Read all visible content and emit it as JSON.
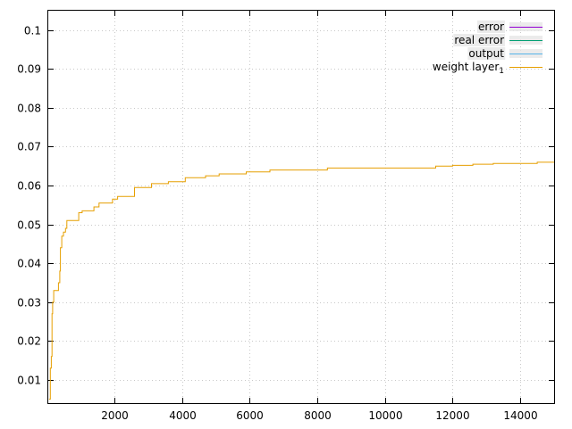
{
  "chart_data": {
    "type": "line",
    "xlim": [
      50,
      15000
    ],
    "ylim": [
      0.004,
      0.105
    ],
    "x_ticks": [
      2000,
      4000,
      6000,
      8000,
      10000,
      12000,
      14000
    ],
    "x_tick_labels": [
      "2000",
      "4000",
      "6000",
      "8000",
      "10000",
      "12000",
      "14000"
    ],
    "y_ticks": [
      0.01,
      0.02,
      0.03,
      0.04,
      0.05,
      0.06,
      0.07,
      0.08,
      0.09,
      0.1
    ],
    "y_tick_labels": [
      "0.01",
      "0.02",
      "0.03",
      "0.04",
      "0.05",
      "0.06",
      "0.07",
      "0.08",
      "0.09",
      "0.1"
    ],
    "grid": true,
    "legend_position": "top-right",
    "series": [
      {
        "name": "error",
        "color": "#9400d3",
        "values": []
      },
      {
        "name": "real error",
        "color": "#009e73",
        "values": []
      },
      {
        "name": "output",
        "color": "#56b4e9",
        "values": []
      },
      {
        "name": "weight layer",
        "name_subscript": "1",
        "color": "#e69f00",
        "points": [
          [
            70,
            0.005
          ],
          [
            100,
            0.005
          ],
          [
            110,
            0.013
          ],
          [
            140,
            0.016
          ],
          [
            160,
            0.027
          ],
          [
            180,
            0.03
          ],
          [
            210,
            0.033
          ],
          [
            320,
            0.033
          ],
          [
            350,
            0.035
          ],
          [
            390,
            0.038
          ],
          [
            410,
            0.044
          ],
          [
            450,
            0.047
          ],
          [
            500,
            0.048
          ],
          [
            560,
            0.049
          ],
          [
            600,
            0.051
          ],
          [
            900,
            0.051
          ],
          [
            950,
            0.053
          ],
          [
            1050,
            0.0535
          ],
          [
            1400,
            0.0545
          ],
          [
            1550,
            0.0555
          ],
          [
            1950,
            0.0565
          ],
          [
            2100,
            0.0572
          ],
          [
            2600,
            0.0595
          ],
          [
            3100,
            0.0605
          ],
          [
            3600,
            0.061
          ],
          [
            4100,
            0.062
          ],
          [
            4700,
            0.0625
          ],
          [
            5100,
            0.063
          ],
          [
            5900,
            0.0635
          ],
          [
            6600,
            0.064
          ],
          [
            8300,
            0.0645
          ],
          [
            10400,
            0.0645
          ],
          [
            11500,
            0.065
          ],
          [
            12000,
            0.0652
          ],
          [
            12600,
            0.0655
          ],
          [
            13200,
            0.0657
          ],
          [
            14500,
            0.066
          ],
          [
            15000,
            0.066
          ]
        ]
      }
    ]
  }
}
